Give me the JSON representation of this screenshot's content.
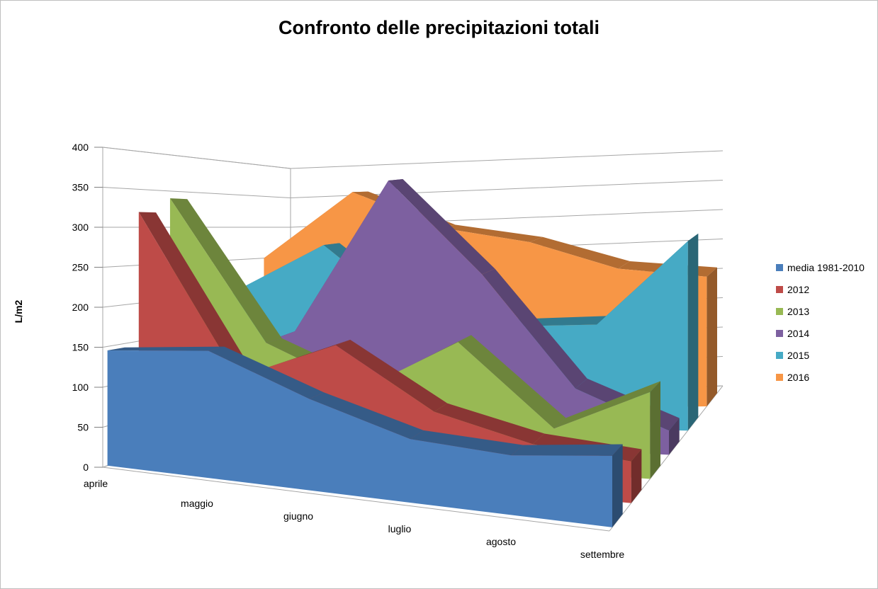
{
  "chart_data": {
    "type": "area",
    "title": "Confronto delle precipitazioni totali",
    "ylabel": "L/m2",
    "xlabel": "",
    "ylim": [
      0,
      400
    ],
    "yticks": [
      "0",
      "50",
      "100",
      "150",
      "200",
      "250",
      "300",
      "350",
      "400"
    ],
    "categories": [
      "aprile",
      "maggio",
      "giugno",
      "luglio",
      "agosto",
      "settembre"
    ],
    "legend_position": "right",
    "grid": true,
    "series": [
      {
        "name": "media 1981-2010",
        "color": "#4a7ebb",
        "values": [
          145,
          160,
          115,
          80,
          75,
          90
        ]
      },
      {
        "name": "2012",
        "color": "#be4b48",
        "values": [
          320,
          115,
          170,
          95,
          65,
          55
        ]
      },
      {
        "name": "2013",
        "color": "#98b954",
        "values": [
          340,
          150,
          95,
          170,
          60,
          120
        ]
      },
      {
        "name": "2014",
        "color": "#7d60a0",
        "values": [
          100,
          155,
          380,
          250,
          90,
          35
        ]
      },
      {
        "name": "2015",
        "color": "#46aac5",
        "values": [
          200,
          275,
          165,
          155,
          160,
          290
        ]
      },
      {
        "name": "2016",
        "color": "#f79646",
        "values": [
          250,
          355,
          295,
          270,
          225,
          210
        ]
      }
    ]
  }
}
